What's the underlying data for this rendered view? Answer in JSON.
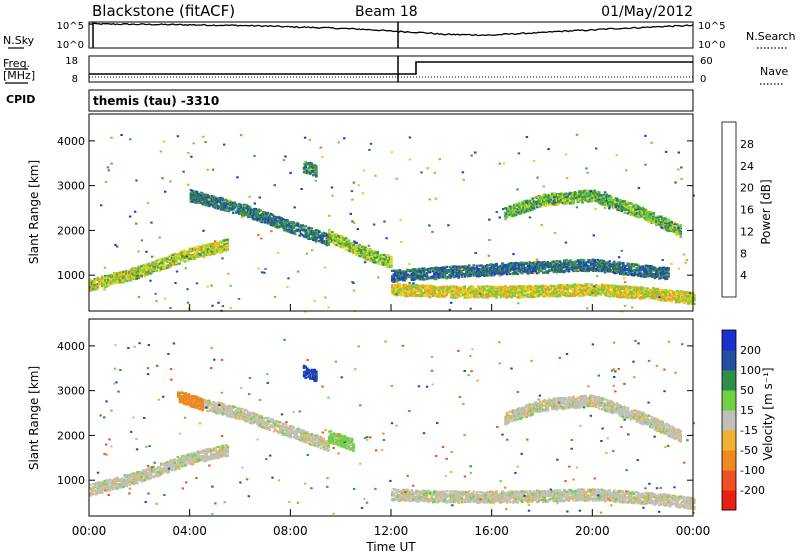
{
  "header": {
    "station": "Blackstone (fitACF)",
    "beam": "Beam 18",
    "date": "01/May/2012"
  },
  "noise_panel": {
    "left_label": "N.Sky",
    "right_label": "N.Search",
    "left_ticks": [
      "10^5",
      "10^0"
    ],
    "right_ticks": [
      "10^5",
      "10^0"
    ]
  },
  "freq_panel": {
    "left_label_1": "Freq.",
    "left_label_2": "[MHz]",
    "right_label": "Nave",
    "left_ticks": [
      "18",
      "8"
    ],
    "right_ticks": [
      "60",
      "0"
    ]
  },
  "cpid_label": "CPID",
  "cpid_text": "themis (tau) -3310",
  "colors": {
    "power": [
      "#2030e0",
      "#1e4fb0",
      "#2f6f5a",
      "#3f9a4a",
      "#6ccf3a",
      "#e8d020",
      "#f0a020",
      "#f07020",
      "#e82010"
    ],
    "velocity": [
      "#e82010",
      "#f05020",
      "#f08820",
      "#f0b030",
      "#c0c0b8",
      "#70d040",
      "#2f8f4a",
      "#2050a0",
      "#1830d0"
    ]
  },
  "chart_data": [
    {
      "type": "line",
      "title": "",
      "xlabel": "",
      "ylabel": "N.Sky",
      "x_range_hours": [
        0,
        24
      ],
      "y_scale": "log",
      "ylim": [
        1,
        100000
      ],
      "series": [
        {
          "name": "N.Sky",
          "x": [
            0,
            2,
            4,
            6,
            8,
            10,
            12,
            14,
            16,
            18,
            20,
            22,
            24
          ],
          "values": [
            3000,
            2500,
            2000,
            1500,
            800,
            400,
            120,
            30,
            20,
            60,
            200,
            600,
            1500
          ]
        }
      ]
    },
    {
      "type": "line",
      "title": "",
      "xlabel": "",
      "ylabel": "Freq. [MHz]",
      "x_range_hours": [
        0,
        24
      ],
      "ylim": [
        8,
        18
      ],
      "series": [
        {
          "name": "Freq.",
          "x": [
            0,
            12,
            12,
            13,
            13,
            24
          ],
          "values": [
            10.5,
            10.5,
            10.5,
            10.5,
            15.0,
            15.0
          ]
        }
      ],
      "secondary": {
        "ylabel": "Nave",
        "ylim": [
          0,
          60
        ]
      }
    },
    {
      "type": "heatmap",
      "title": "",
      "xlabel": "",
      "ylabel": "Slant Range [km]",
      "x_range_hours": [
        0,
        24
      ],
      "ylim": [
        200,
        4600
      ],
      "yticks": [
        "1000",
        "2000",
        "3000",
        "4000"
      ],
      "colorbar": {
        "label": "Power [dB]",
        "ticks": [
          "4",
          "8",
          "12",
          "16",
          "20",
          "24",
          "28"
        ],
        "range": [
          0,
          32
        ]
      },
      "features": [
        {
          "x": [
            0.0,
            2.0,
            4.0,
            5.5
          ],
          "range_km": [
            800,
            1100,
            1500,
            1700
          ],
          "level": 20
        },
        {
          "x": [
            12.0,
            14.0,
            17.0,
            20.0,
            22.5,
            24.0
          ],
          "range_km": [
            700,
            650,
            650,
            700,
            600,
            500
          ],
          "level": 22
        },
        {
          "x": [
            12.0,
            16.0,
            20.0,
            23.0
          ],
          "range_km": [
            1000,
            1150,
            1250,
            1050
          ],
          "level": 9
        },
        {
          "x": [
            16.5,
            18.0,
            20.0,
            22.0,
            23.5
          ],
          "range_km": [
            2400,
            2700,
            2800,
            2400,
            2000
          ],
          "level": 16
        },
        {
          "x": [
            4.0,
            6.0,
            8.0,
            9.5
          ],
          "range_km": [
            2800,
            2500,
            2100,
            1800
          ],
          "level": 10
        },
        {
          "x": [
            9.5,
            11.0,
            12.0
          ],
          "range_km": [
            1900,
            1500,
            1300
          ],
          "level": 18
        },
        {
          "x": [
            8.5,
            9.0
          ],
          "range_km": [
            3450,
            3350
          ],
          "level": 12
        }
      ]
    },
    {
      "type": "heatmap",
      "title": "",
      "xlabel": "Time UT",
      "ylabel": "Slant Range [km]",
      "x_ticks": [
        "00:00",
        "04:00",
        "08:00",
        "12:00",
        "16:00",
        "20:00",
        "00:00"
      ],
      "x_range_hours": [
        0,
        24
      ],
      "ylim": [
        200,
        4600
      ],
      "yticks": [
        "1000",
        "2000",
        "3000",
        "4000"
      ],
      "colorbar": {
        "label": "Velocity [m s⁻¹]",
        "ticks": [
          "200",
          "100",
          "50",
          "15",
          "-15",
          "-50",
          "-100",
          "-200"
        ],
        "range": [
          -250,
          250
        ]
      },
      "features": [
        {
          "x": [
            0.0,
            2.0,
            4.0,
            5.5
          ],
          "range_km": [
            800,
            1100,
            1500,
            1700
          ],
          "velocity": 0
        },
        {
          "x": [
            12.0,
            14.0,
            17.0,
            20.0,
            22.5,
            24.0
          ],
          "range_km": [
            700,
            650,
            650,
            700,
            600,
            500
          ],
          "velocity": 0
        },
        {
          "x": [
            16.5,
            18.0,
            20.0,
            22.0,
            23.5
          ],
          "range_km": [
            2400,
            2700,
            2800,
            2400,
            2000
          ],
          "velocity": 0
        },
        {
          "x": [
            4.0,
            6.0,
            8.0,
            9.5
          ],
          "range_km": [
            2800,
            2500,
            2100,
            1800
          ],
          "velocity": 0
        },
        {
          "x": [
            9.5,
            10.5
          ],
          "range_km": [
            2000,
            1800
          ],
          "velocity": 30
        },
        {
          "x": [
            3.5,
            4.5
          ],
          "range_km": [
            2900,
            2700
          ],
          "velocity": -80
        },
        {
          "x": [
            8.5,
            9.0
          ],
          "range_km": [
            3450,
            3350
          ],
          "velocity": 200
        }
      ]
    }
  ]
}
